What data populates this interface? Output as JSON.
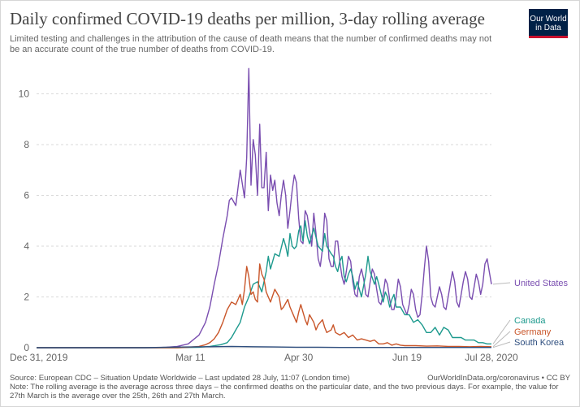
{
  "header": {
    "title": "Daily confirmed COVID-19 deaths per million, 3-day rolling average",
    "subtitle": "Limited testing and challenges in the attribution of the cause of death means that the number of confirmed deaths may not be an accurate count of the true number of deaths from COVID-19.",
    "logo_line1": "Our World",
    "logo_line2": "in Data"
  },
  "footer": {
    "source": "Source: European CDC – Situation Update Worldwide – Last updated 28 July, 11:07 (London time)",
    "source_right": "OurWorldInData.org/coronavirus • CC BY",
    "note": "Note: The rolling average is the average across three days – the confirmed deaths on the particular date, and the two previous days. For example, the value for 27th March is the average over the 25th, 26th and 27th March."
  },
  "colors": {
    "United States": "#7a4eb0",
    "Canada": "#1e9a8e",
    "Germany": "#c9562a",
    "South Korea": "#2f4f7f",
    "grid": "#d9d9d9",
    "axis_text": "#666666"
  },
  "chart_data": {
    "type": "line",
    "title": "Daily confirmed COVID-19 deaths per million, 3-day rolling average",
    "x_ticks": [
      "Dec 31, 2019",
      "Mar 11",
      "Apr 30",
      "Jun 19",
      "Jul 28, 2020"
    ],
    "x_tick_days": [
      0,
      71,
      121,
      171,
      210
    ],
    "xlim": [
      0,
      210
    ],
    "ylim": [
      0,
      11.2
    ],
    "y_ticks": [
      0,
      2,
      4,
      6,
      8,
      10
    ],
    "grid": true,
    "legend": "right, labels at line ends",
    "x_unit": "days since Dec 31, 2019",
    "series": [
      {
        "name": "United States",
        "x": [
          0,
          55,
          60,
          65,
          70,
          75,
          78,
          80,
          82,
          84,
          86,
          88,
          89,
          90,
          92,
          94,
          96,
          97,
          98,
          99,
          100,
          101,
          102,
          103,
          104,
          105,
          106,
          107,
          108,
          109,
          110,
          111,
          112,
          113,
          114,
          115,
          116,
          117,
          118,
          119,
          120,
          121,
          122,
          123,
          124,
          125,
          126,
          127,
          128,
          129,
          130,
          131,
          132,
          133,
          134,
          135,
          136,
          137,
          138,
          139,
          140,
          141,
          142,
          143,
          144,
          145,
          146,
          147,
          148,
          149,
          150,
          151,
          152,
          153,
          154,
          155,
          156,
          157,
          158,
          159,
          160,
          161,
          162,
          163,
          164,
          165,
          166,
          167,
          168,
          169,
          170,
          171,
          172,
          173,
          174,
          175,
          176,
          177,
          178,
          179,
          180,
          181,
          182,
          183,
          184,
          185,
          186,
          187,
          188,
          189,
          190,
          191,
          192,
          193,
          194,
          195,
          196,
          197,
          198,
          199,
          200,
          201,
          202,
          203,
          204,
          205,
          206,
          207,
          208,
          209,
          210
        ],
        "y": [
          0,
          0,
          0.02,
          0.05,
          0.15,
          0.5,
          1.0,
          1.6,
          2.5,
          3.3,
          4.3,
          5.2,
          5.8,
          5.9,
          5.6,
          7.0,
          5.9,
          7.5,
          11.0,
          6.4,
          8.2,
          7.6,
          6.0,
          8.8,
          6.3,
          6.3,
          7.7,
          5.4,
          6.8,
          6.2,
          6.6,
          5.7,
          5.2,
          6.0,
          6.6,
          6.0,
          4.7,
          5.4,
          6.2,
          6.8,
          6.5,
          5.1,
          4.2,
          4.1,
          5.4,
          5.2,
          4.6,
          4.0,
          5.3,
          4.5,
          3.5,
          3.2,
          3.9,
          5.3,
          5.0,
          3.5,
          3.2,
          3.2,
          4.2,
          4.2,
          3.4,
          2.8,
          2.5,
          3.0,
          3.6,
          3.4,
          2.6,
          2.1,
          2.0,
          2.8,
          3.1,
          2.7,
          2.1,
          2.0,
          2.6,
          3.1,
          2.9,
          2.3,
          1.8,
          1.7,
          2.1,
          2.7,
          2.5,
          1.9,
          1.5,
          1.5,
          2.0,
          2.7,
          2.4,
          1.7,
          1.5,
          1.3,
          1.7,
          2.3,
          2.1,
          1.5,
          1.2,
          1.3,
          2.1,
          3.1,
          4.0,
          3.4,
          2.0,
          1.7,
          1.6,
          2.0,
          2.4,
          2.1,
          1.6,
          1.5,
          2.0,
          2.5,
          3.0,
          2.6,
          1.8,
          1.6,
          2.1,
          2.6,
          3.0,
          2.7,
          2.0,
          1.9,
          2.4,
          2.9,
          2.6,
          2.1,
          2.5,
          3.3,
          3.5,
          3.0,
          2.5
        ]
      },
      {
        "name": "Canada",
        "x": [
          0,
          65,
          70,
          75,
          80,
          85,
          88,
          90,
          92,
          94,
          96,
          98,
          100,
          102,
          104,
          106,
          107,
          108,
          110,
          112,
          114,
          115,
          116,
          117,
          118,
          119,
          120,
          121,
          122,
          123,
          124,
          125,
          126,
          128,
          130,
          132,
          133,
          134,
          136,
          137,
          138,
          139,
          140,
          141,
          142,
          143,
          144,
          145,
          146,
          147,
          148,
          150,
          152,
          153,
          154,
          156,
          157,
          158,
          160,
          161,
          162,
          163,
          164,
          165,
          166,
          168,
          170,
          172,
          174,
          176,
          178,
          180,
          182,
          184,
          186,
          188,
          190,
          192,
          194,
          196,
          198,
          200,
          202,
          204,
          206,
          208,
          210
        ],
        "y": [
          0,
          0,
          0.01,
          0.02,
          0.05,
          0.12,
          0.2,
          0.4,
          0.7,
          1.0,
          1.6,
          2.0,
          2.5,
          2.6,
          2.2,
          3.0,
          3.6,
          3.1,
          3.7,
          3.6,
          4.3,
          4.0,
          3.6,
          4.5,
          4.0,
          3.9,
          4.0,
          4.6,
          4.8,
          4.2,
          5.0,
          4.4,
          4.1,
          4.7,
          4.0,
          3.8,
          4.5,
          4.0,
          3.7,
          3.6,
          3.2,
          3.0,
          3.4,
          3.6,
          2.8,
          2.6,
          2.9,
          3.1,
          2.8,
          2.3,
          2.6,
          2.0,
          2.9,
          3.6,
          3.0,
          2.5,
          2.8,
          2.5,
          1.8,
          2.2,
          2.0,
          1.6,
          1.9,
          2.1,
          1.6,
          1.6,
          1.3,
          1.3,
          1.0,
          1.1,
          0.9,
          0.6,
          0.6,
          0.8,
          0.5,
          0.8,
          0.7,
          0.4,
          0.4,
          0.4,
          0.3,
          0.3,
          0.3,
          0.2,
          0.2,
          0.15,
          0.15
        ]
      },
      {
        "name": "Germany",
        "x": [
          0,
          65,
          70,
          75,
          78,
          80,
          82,
          84,
          86,
          88,
          90,
          92,
          94,
          95,
          96,
          97,
          98,
          99,
          100,
          101,
          102,
          103,
          104,
          105,
          106,
          107,
          108,
          110,
          112,
          113,
          114,
          116,
          117,
          118,
          120,
          121,
          122,
          124,
          125,
          126,
          128,
          129,
          130,
          132,
          133,
          134,
          136,
          137,
          138,
          140,
          142,
          144,
          146,
          148,
          150,
          152,
          154,
          156,
          158,
          160,
          162,
          164,
          166,
          168,
          170,
          175,
          180,
          185,
          190,
          195,
          200,
          205,
          210
        ],
        "y": [
          0,
          0,
          0.02,
          0.05,
          0.12,
          0.2,
          0.35,
          0.6,
          1.0,
          1.5,
          1.8,
          1.7,
          2.1,
          1.7,
          2.3,
          3.2,
          2.8,
          2.1,
          2.2,
          1.9,
          1.8,
          3.3,
          2.9,
          2.7,
          2.2,
          2.0,
          1.8,
          2.3,
          2.0,
          1.5,
          1.6,
          1.9,
          1.6,
          1.4,
          1.0,
          1.4,
          1.7,
          1.1,
          0.9,
          1.3,
          1.0,
          0.7,
          0.9,
          1.1,
          0.8,
          0.6,
          0.7,
          0.9,
          0.6,
          0.5,
          0.6,
          0.4,
          0.5,
          0.3,
          0.35,
          0.3,
          0.25,
          0.3,
          0.15,
          0.15,
          0.2,
          0.1,
          0.15,
          0.1,
          0.08,
          0.08,
          0.06,
          0.07,
          0.05,
          0.05,
          0.04,
          0.05,
          0.04
        ]
      },
      {
        "name": "South Korea",
        "x": [
          0,
          50,
          55,
          60,
          70,
          80,
          90,
          100,
          110,
          120,
          130,
          140,
          150,
          160,
          170,
          180,
          190,
          200,
          210
        ],
        "y": [
          0,
          0,
          0.01,
          0.02,
          0.03,
          0.04,
          0.05,
          0.04,
          0.03,
          0.02,
          0.02,
          0.01,
          0.01,
          0.01,
          0.01,
          0.01,
          0.01,
          0.01,
          0.01
        ]
      }
    ]
  }
}
